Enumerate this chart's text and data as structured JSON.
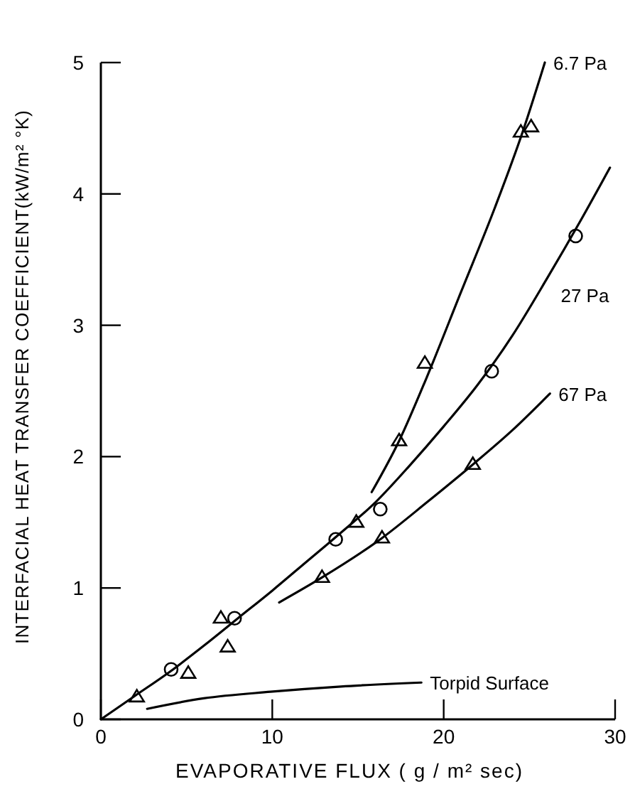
{
  "chart_data": {
    "type": "scatter",
    "xlabel": "EVAPORATIVE FLUX ( g / m² sec)",
    "ylabel": "INTERFACIAL HEAT TRANSFER COEFFICIENT(kW/m² °K)",
    "xlim": [
      0,
      30
    ],
    "ylim": [
      0,
      5
    ],
    "xticks": [
      0,
      10,
      20,
      30
    ],
    "yticks": [
      0,
      1,
      2,
      3,
      4,
      5
    ],
    "grid": false,
    "series": [
      {
        "marker": "triangle",
        "color": "#000000",
        "x": [
          2.1,
          5.1,
          7.4,
          17.4,
          18.9,
          24.5,
          25.1
        ],
        "values": [
          0.17,
          0.35,
          0.55,
          2.12,
          2.71,
          4.47,
          4.51
        ]
      },
      {
        "marker": "circle",
        "color": "#000000",
        "x": [
          4.1,
          7.8,
          13.7,
          16.3,
          22.8,
          27.7
        ],
        "values": [
          0.38,
          0.77,
          1.37,
          1.6,
          2.65,
          3.68
        ]
      },
      {
        "marker": "triangle",
        "color": "#000000",
        "x": [
          7.0,
          12.9,
          14.9,
          16.4,
          21.7
        ],
        "values": [
          0.77,
          1.08,
          1.5,
          1.38,
          1.94
        ]
      },
      {
        "type": "line",
        "name": "6.7 Pa",
        "marker": "none",
        "color": "#000000",
        "x": [
          15.8,
          17.4,
          19,
          21,
          23,
          24.6,
          25.9
        ],
        "values": [
          1.73,
          2.12,
          2.6,
          3.25,
          3.9,
          4.47,
          5.0
        ]
      },
      {
        "type": "line",
        "name": "27 Pa",
        "marker": "none",
        "color": "#000000",
        "x": [
          0,
          2,
          4,
          6,
          8,
          10,
          12,
          14,
          16,
          18,
          20,
          22,
          24,
          26,
          28,
          29.7
        ],
        "values": [
          0,
          0.18,
          0.36,
          0.56,
          0.77,
          0.98,
          1.2,
          1.42,
          1.65,
          1.93,
          2.23,
          2.55,
          2.92,
          3.35,
          3.8,
          4.2
        ]
      },
      {
        "type": "line",
        "name": "67 Pa",
        "marker": "none",
        "color": "#000000",
        "x": [
          10.4,
          12.9,
          16.4,
          19,
          21.7,
          24,
          26.2
        ],
        "values": [
          0.89,
          1.08,
          1.38,
          1.65,
          1.94,
          2.2,
          2.48
        ]
      },
      {
        "type": "line",
        "name": "Torpid Surface",
        "marker": "none",
        "color": "#000000",
        "x": [
          2.7,
          6,
          9.9,
          14,
          18.7
        ],
        "values": [
          0.08,
          0.16,
          0.21,
          0.25,
          0.28
        ]
      }
    ]
  }
}
